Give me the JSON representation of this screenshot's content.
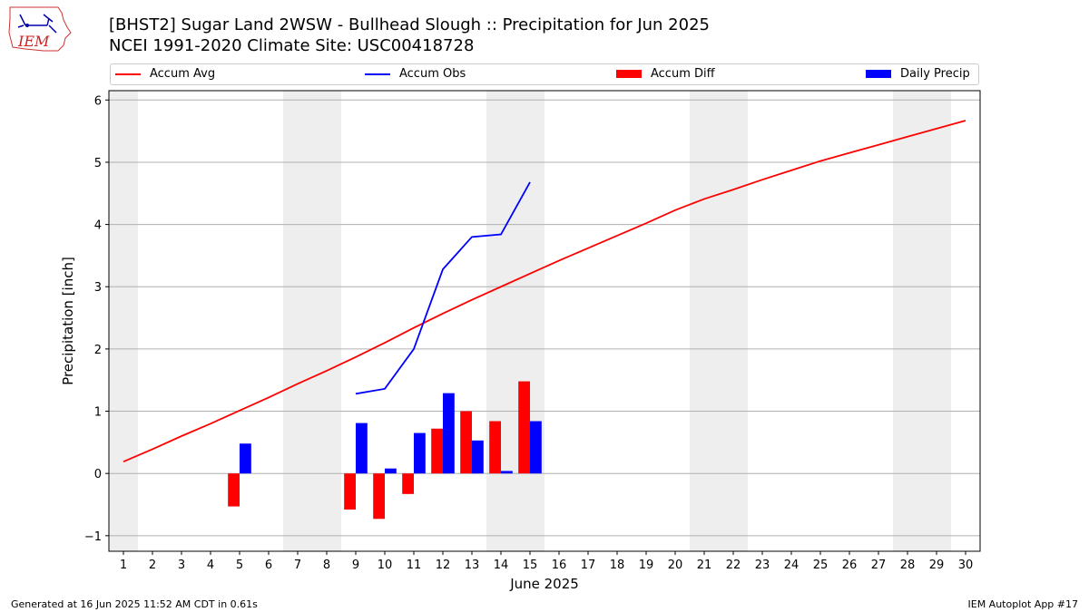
{
  "header": {
    "title_line1": "[BHST2] Sugar Land 2WSW - Bullhead Slough :: Precipitation for Jun 2025",
    "title_line2": "NCEI 1991-2020 Climate Site: USC00418728",
    "logo_text": "IEM"
  },
  "footer": {
    "left": "Generated at 16 Jun 2025 11:52 AM CDT in 0.61s",
    "right": "IEM Autoplot App #17"
  },
  "colors": {
    "accum_avg": "#ff0000",
    "accum_obs": "#0000ff",
    "accum_diff": "#ff0000",
    "daily_precip": "#0000ff",
    "weekend_shade": "#eeeeee",
    "grid": "#b0b0b0"
  },
  "chart_data": {
    "type": "bar+line",
    "xlabel": "June 2025",
    "ylabel": "Precipitation [inch]",
    "xlim": [
      0.5,
      30.5
    ],
    "ylim": [
      -1.25,
      6.15
    ],
    "x_ticks": [
      1,
      2,
      3,
      4,
      5,
      6,
      7,
      8,
      9,
      10,
      11,
      12,
      13,
      14,
      15,
      16,
      17,
      18,
      19,
      20,
      21,
      22,
      23,
      24,
      25,
      26,
      27,
      28,
      29,
      30
    ],
    "y_ticks": [
      -1,
      0,
      1,
      2,
      3,
      4,
      5,
      6
    ],
    "grid": "horizontal",
    "legend_placement": "top",
    "shaded_weekends": [
      [
        0.5,
        1.5
      ],
      [
        6.5,
        8.5
      ],
      [
        13.5,
        15.5
      ],
      [
        20.5,
        22.5
      ],
      [
        27.5,
        29.5
      ]
    ],
    "series": [
      {
        "name": "Accum Avg",
        "kind": "line",
        "x": [
          1,
          2,
          3,
          4,
          5,
          6,
          7,
          8,
          9,
          10,
          11,
          12,
          13,
          14,
          15,
          16,
          17,
          18,
          19,
          20,
          21,
          22,
          23,
          24,
          25,
          26,
          27,
          28,
          29,
          30
        ],
        "values": [
          0.19,
          0.39,
          0.6,
          0.8,
          1.01,
          1.22,
          1.44,
          1.65,
          1.87,
          2.1,
          2.34,
          2.57,
          2.79,
          3.0,
          3.21,
          3.42,
          3.62,
          3.82,
          4.02,
          4.23,
          4.41,
          4.56,
          4.72,
          4.87,
          5.02,
          5.15,
          5.28,
          5.41,
          5.54,
          5.67
        ]
      },
      {
        "name": "Accum Obs",
        "kind": "line",
        "x": [
          9,
          10,
          11,
          12,
          13,
          14,
          15
        ],
        "values": [
          1.28,
          1.36,
          2.0,
          3.28,
          3.8,
          3.84,
          4.68
        ]
      },
      {
        "name": "Accum Diff",
        "kind": "bar",
        "x": [
          5,
          9,
          10,
          11,
          12,
          13,
          14,
          15
        ],
        "values": [
          -0.53,
          -0.58,
          -0.73,
          -0.33,
          0.72,
          1.0,
          0.84,
          1.48
        ]
      },
      {
        "name": "Daily Precip",
        "kind": "bar",
        "x": [
          5,
          9,
          10,
          11,
          12,
          13,
          14,
          15
        ],
        "values": [
          0.48,
          0.81,
          0.08,
          0.65,
          1.29,
          0.53,
          0.04,
          0.84
        ]
      }
    ]
  }
}
